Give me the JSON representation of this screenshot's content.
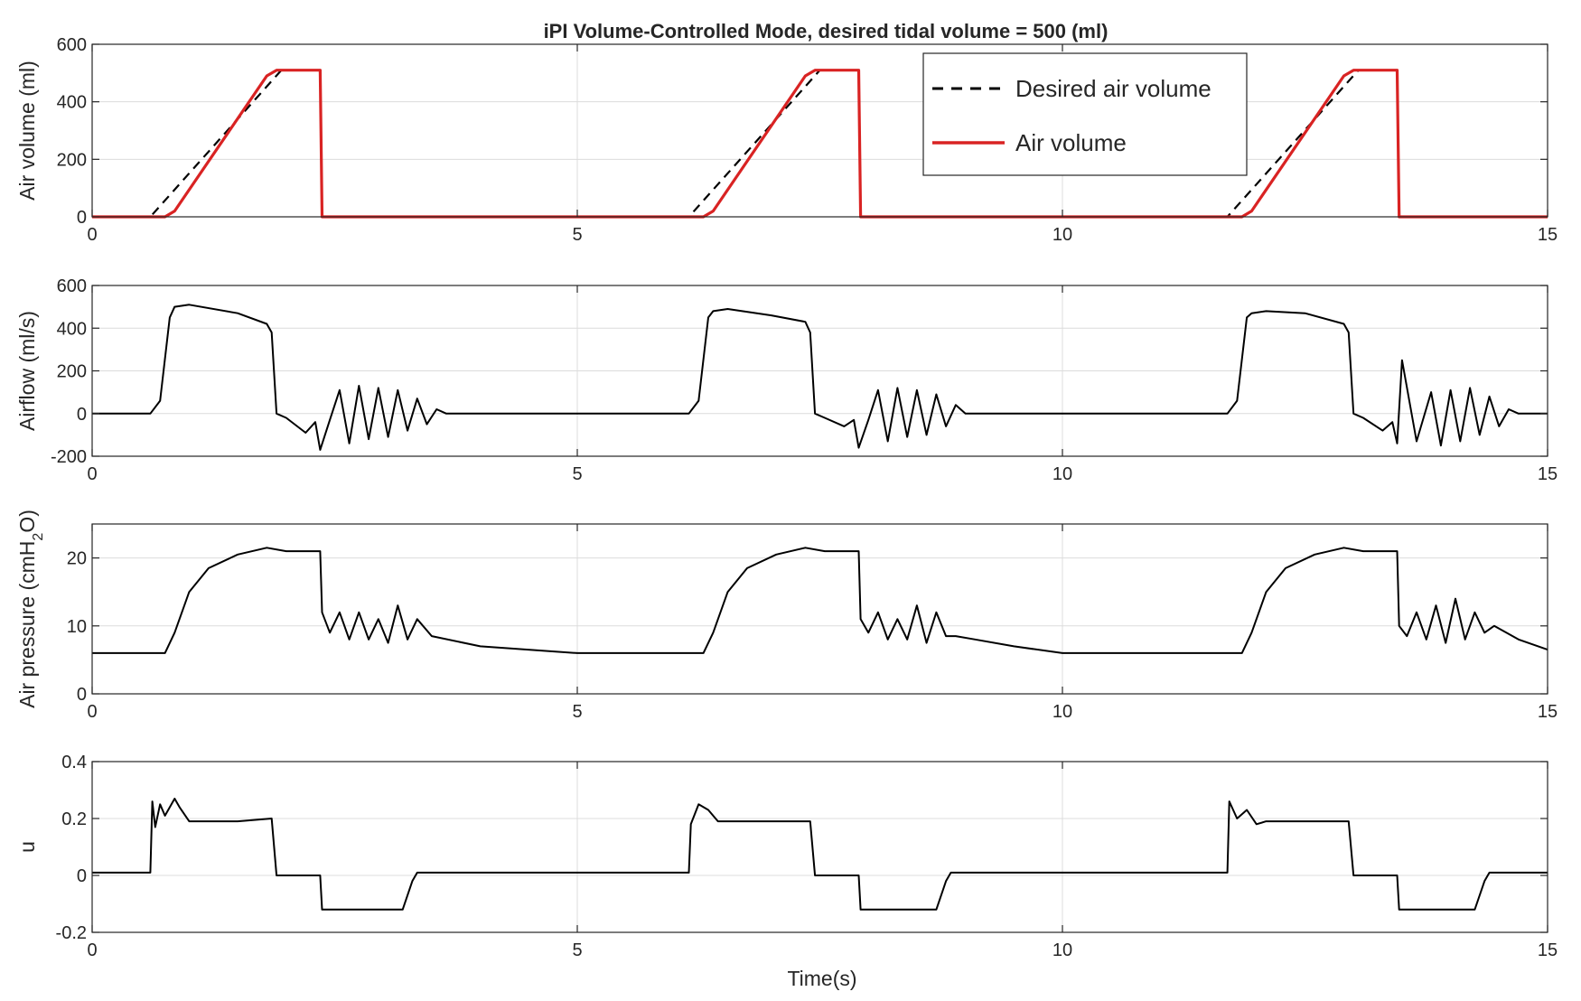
{
  "chart_data": [
    {
      "type": "line",
      "title": "iPI Volume-Controlled Mode, desired tidal volume  = 500 (ml)",
      "ylabel": "Air volume (ml)",
      "xlabel": "",
      "xlim": [
        0,
        15
      ],
      "ylim": [
        0,
        600
      ],
      "xticks": [
        "0",
        "5",
        "10",
        "15"
      ],
      "yticks": [
        "0",
        "200",
        "400",
        "600"
      ],
      "grid": true,
      "legend": "top-right",
      "series": [
        {
          "name": "Desired air volume",
          "style": "dashed",
          "color": "#000000",
          "x": [
            0,
            0.6,
            1.95,
            2.35,
            2.37,
            6.15,
            7.5,
            7.9,
            7.92,
            11.7,
            13.05,
            13.45,
            13.47,
            15
          ],
          "y": [
            0,
            0,
            510,
            510,
            0,
            0,
            510,
            510,
            0,
            0,
            510,
            510,
            0,
            0
          ]
        },
        {
          "name": "Air volume",
          "style": "solid",
          "color": "#d92323",
          "x": [
            0,
            0.75,
            0.85,
            1.8,
            1.9,
            2.35,
            2.37,
            6.3,
            6.4,
            7.35,
            7.45,
            7.9,
            7.92,
            11.85,
            11.95,
            12.9,
            13.0,
            13.45,
            13.47,
            15
          ],
          "y": [
            0,
            0,
            20,
            490,
            510,
            510,
            0,
            0,
            20,
            490,
            510,
            510,
            0,
            0,
            20,
            490,
            510,
            510,
            0,
            0
          ]
        }
      ]
    },
    {
      "type": "line",
      "ylabel": "Airflow (ml/s)",
      "xlim": [
        0,
        15
      ],
      "ylim": [
        -200,
        600
      ],
      "xticks": [
        "0",
        "5",
        "10",
        "15"
      ],
      "yticks": [
        "-200",
        "0",
        "200",
        "400",
        "600"
      ],
      "grid": true,
      "series": [
        {
          "color": "#000000",
          "x": [
            0,
            0.6,
            0.7,
            0.8,
            0.85,
            1.0,
            1.5,
            1.8,
            1.85,
            1.9,
            2.0,
            2.2,
            2.3,
            2.35,
            2.45,
            2.55,
            2.65,
            2.75,
            2.85,
            2.95,
            3.05,
            3.15,
            3.25,
            3.35,
            3.45,
            3.55,
            3.65,
            6.15,
            6.25,
            6.35,
            6.4,
            6.55,
            7.0,
            7.35,
            7.4,
            7.45,
            7.55,
            7.75,
            7.85,
            7.9,
            8.0,
            8.1,
            8.2,
            8.3,
            8.4,
            8.5,
            8.6,
            8.7,
            8.8,
            8.9,
            9.0,
            9.1,
            11.7,
            11.8,
            11.9,
            11.95,
            12.1,
            12.5,
            12.9,
            12.95,
            13.0,
            13.1,
            13.3,
            13.4,
            13.45,
            13.5,
            13.65,
            13.8,
            13.9,
            14.0,
            14.1,
            14.2,
            14.3,
            14.4,
            14.5,
            14.6,
            14.7,
            15
          ],
          "y": [
            0,
            0,
            60,
            450,
            500,
            510,
            470,
            420,
            380,
            0,
            -20,
            -90,
            -40,
            -170,
            -30,
            110,
            -140,
            130,
            -120,
            120,
            -110,
            110,
            -80,
            70,
            -50,
            20,
            0,
            0,
            60,
            450,
            480,
            490,
            460,
            430,
            380,
            0,
            -20,
            -60,
            -30,
            -160,
            -30,
            110,
            -130,
            120,
            -110,
            110,
            -100,
            90,
            -60,
            40,
            0,
            0,
            0,
            60,
            450,
            470,
            480,
            470,
            420,
            380,
            0,
            -20,
            -80,
            -40,
            -140,
            250,
            -130,
            100,
            -150,
            110,
            -130,
            120,
            -100,
            80,
            -60,
            20,
            0,
            0
          ]
        }
      ]
    },
    {
      "type": "line",
      "ylabel": "Air pressure (cmH2O)",
      "xlim": [
        0,
        15
      ],
      "ylim": [
        0,
        25
      ],
      "xticks": [
        "0",
        "5",
        "10",
        "15"
      ],
      "yticks": [
        "0",
        "10",
        "20"
      ],
      "grid": true,
      "series": [
        {
          "color": "#000000",
          "x": [
            0,
            0.75,
            0.85,
            1.0,
            1.2,
            1.5,
            1.8,
            2.0,
            2.35,
            2.37,
            2.45,
            2.55,
            2.65,
            2.75,
            2.85,
            2.95,
            3.05,
            3.15,
            3.25,
            3.35,
            3.5,
            4.0,
            5.0,
            6.3,
            6.4,
            6.55,
            6.75,
            7.05,
            7.35,
            7.55,
            7.9,
            7.92,
            8.0,
            8.1,
            8.2,
            8.3,
            8.4,
            8.5,
            8.6,
            8.7,
            8.8,
            8.9,
            9.1,
            9.5,
            10.0,
            11.85,
            11.95,
            12.1,
            12.3,
            12.6,
            12.9,
            13.1,
            13.45,
            13.47,
            13.55,
            13.65,
            13.75,
            13.85,
            13.95,
            14.05,
            14.15,
            14.25,
            14.35,
            14.45,
            14.7,
            15.0
          ],
          "y": [
            6,
            6,
            9,
            15,
            18.5,
            20.5,
            21.5,
            21,
            21,
            12,
            9,
            12,
            8,
            12,
            8,
            11,
            7.5,
            13,
            8,
            11,
            8.5,
            7,
            6,
            6,
            9,
            15,
            18.5,
            20.5,
            21.5,
            21,
            21,
            11,
            9,
            12,
            8,
            11,
            8,
            13,
            7.5,
            12,
            8.5,
            8.5,
            8,
            7,
            6,
            6,
            9,
            15,
            18.5,
            20.5,
            21.5,
            21,
            21,
            10,
            8.5,
            12,
            8,
            13,
            7.5,
            14,
            8,
            12,
            9,
            10,
            8,
            6.5
          ]
        }
      ]
    },
    {
      "type": "line",
      "ylabel": "u",
      "xlabel": "Time(s)",
      "xlim": [
        0,
        15
      ],
      "ylim": [
        -0.2,
        0.4
      ],
      "xticks": [
        "0",
        "5",
        "10",
        "15"
      ],
      "yticks": [
        "-0.2",
        "0",
        "0.2",
        "0.4"
      ],
      "grid": true,
      "series": [
        {
          "color": "#000000",
          "x": [
            0,
            0.6,
            0.62,
            0.65,
            0.7,
            0.75,
            0.85,
            0.9,
            1.0,
            1.5,
            1.85,
            1.9,
            2.35,
            2.37,
            3.2,
            3.3,
            3.35,
            6.15,
            6.17,
            6.25,
            6.35,
            6.45,
            6.55,
            7.0,
            7.4,
            7.45,
            7.9,
            7.92,
            8.7,
            8.8,
            8.85,
            11.7,
            11.72,
            11.8,
            11.9,
            12.0,
            12.1,
            12.5,
            12.95,
            13.0,
            13.45,
            13.47,
            14.25,
            14.35,
            14.4,
            15.0
          ],
          "y": [
            0.01,
            0.01,
            0.26,
            0.17,
            0.25,
            0.21,
            0.27,
            0.24,
            0.19,
            0.19,
            0.2,
            0,
            0,
            -0.12,
            -0.12,
            -0.02,
            0.01,
            0.01,
            0.18,
            0.25,
            0.23,
            0.19,
            0.19,
            0.19,
            0.19,
            0,
            0,
            -0.12,
            -0.12,
            -0.02,
            0.01,
            0.01,
            0.26,
            0.2,
            0.23,
            0.18,
            0.19,
            0.19,
            0.19,
            0,
            0,
            -0.12,
            -0.12,
            -0.02,
            0.01,
            0.01
          ]
        }
      ]
    }
  ]
}
